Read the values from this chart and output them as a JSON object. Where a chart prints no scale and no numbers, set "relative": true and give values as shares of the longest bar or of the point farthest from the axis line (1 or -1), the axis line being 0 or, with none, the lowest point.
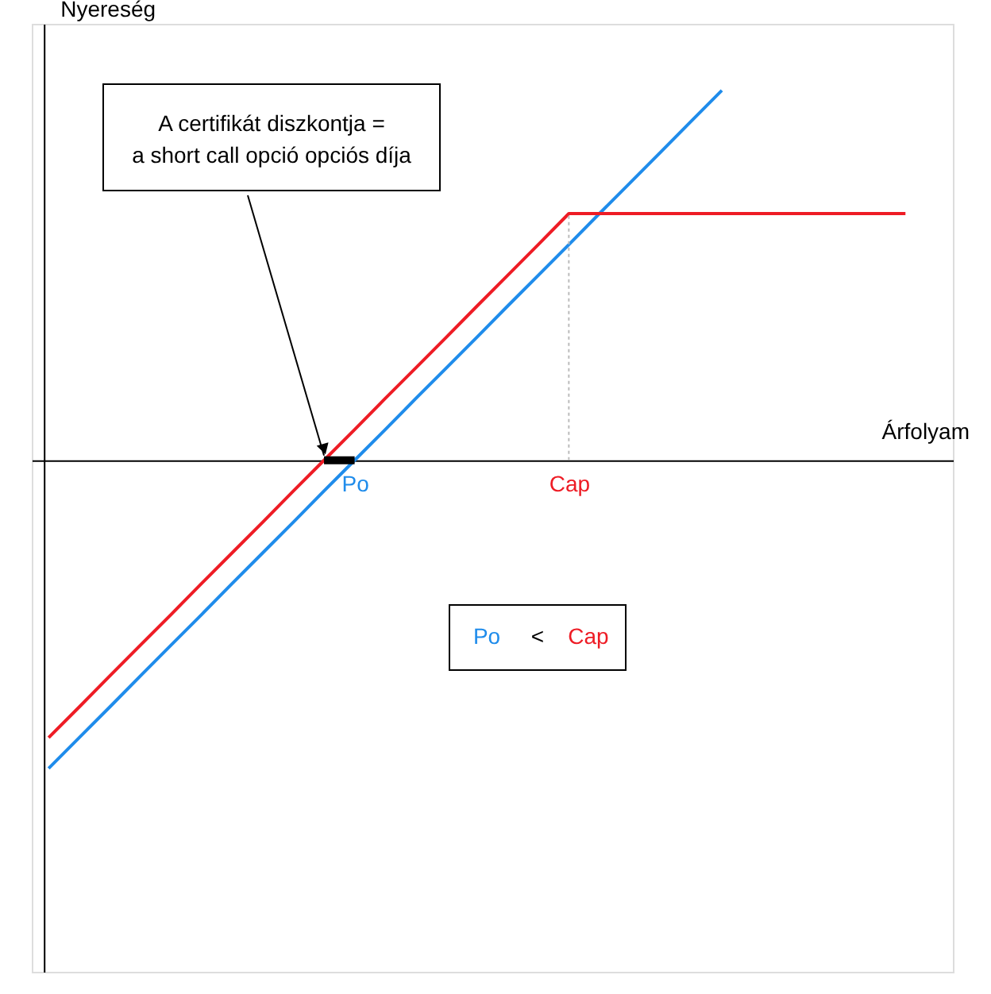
{
  "chart_data": {
    "type": "line",
    "relative": true,
    "xlabel": "Árfolyam",
    "ylabel": "Nyereség",
    "categories": [
      null,
      null,
      null,
      null,
      null,
      null,
      null,
      null,
      null,
      null,
      "Po",
      null,
      null,
      null,
      null,
      null,
      null,
      "Cap",
      null,
      null,
      null,
      null,
      null,
      null,
      null,
      null,
      null,
      null,
      null,
      null
    ],
    "series": [
      {
        "color": "#1f8ceb",
        "values": [
          -0.833,
          -0.75,
          -0.667,
          -0.583,
          -0.5,
          -0.417,
          -0.333,
          -0.25,
          -0.167,
          -0.083,
          0,
          0.083,
          0.167,
          0.25,
          0.333,
          0.417,
          0.5,
          0.583,
          0.667,
          0.75,
          0.833,
          0.917,
          1.0,
          null,
          null,
          null,
          null,
          null,
          null,
          null
        ]
      },
      {
        "color": "#ee1c25",
        "values": [
          -0.75,
          -0.667,
          -0.583,
          -0.5,
          -0.417,
          -0.333,
          -0.25,
          -0.167,
          -0.083,
          0,
          0.083,
          0.167,
          0.25,
          0.333,
          0.417,
          0.5,
          0.583,
          0.667,
          0.667,
          0.667,
          0.667,
          0.667,
          0.667,
          0.667,
          0.667,
          0.667,
          0.667,
          0.667,
          0.667,
          null
        ]
      },
      {
        "color": "#000000",
        "values": [
          null,
          null,
          null,
          null,
          null,
          null,
          null,
          null,
          null,
          0,
          0,
          null,
          null,
          null,
          null,
          null,
          null,
          null,
          null,
          null,
          null,
          null,
          null,
          null,
          null,
          null,
          null,
          null,
          null,
          null
        ]
      }
    ],
    "ref_lines": [
      {
        "axis": "x",
        "value": "Cap",
        "color": "#bbbbbb",
        "line_style": "dotted"
      }
    ],
    "annotations": [
      "A certifikát diszkontja =\na short call opció opciós díja",
      "Po < Cap"
    ]
  }
}
